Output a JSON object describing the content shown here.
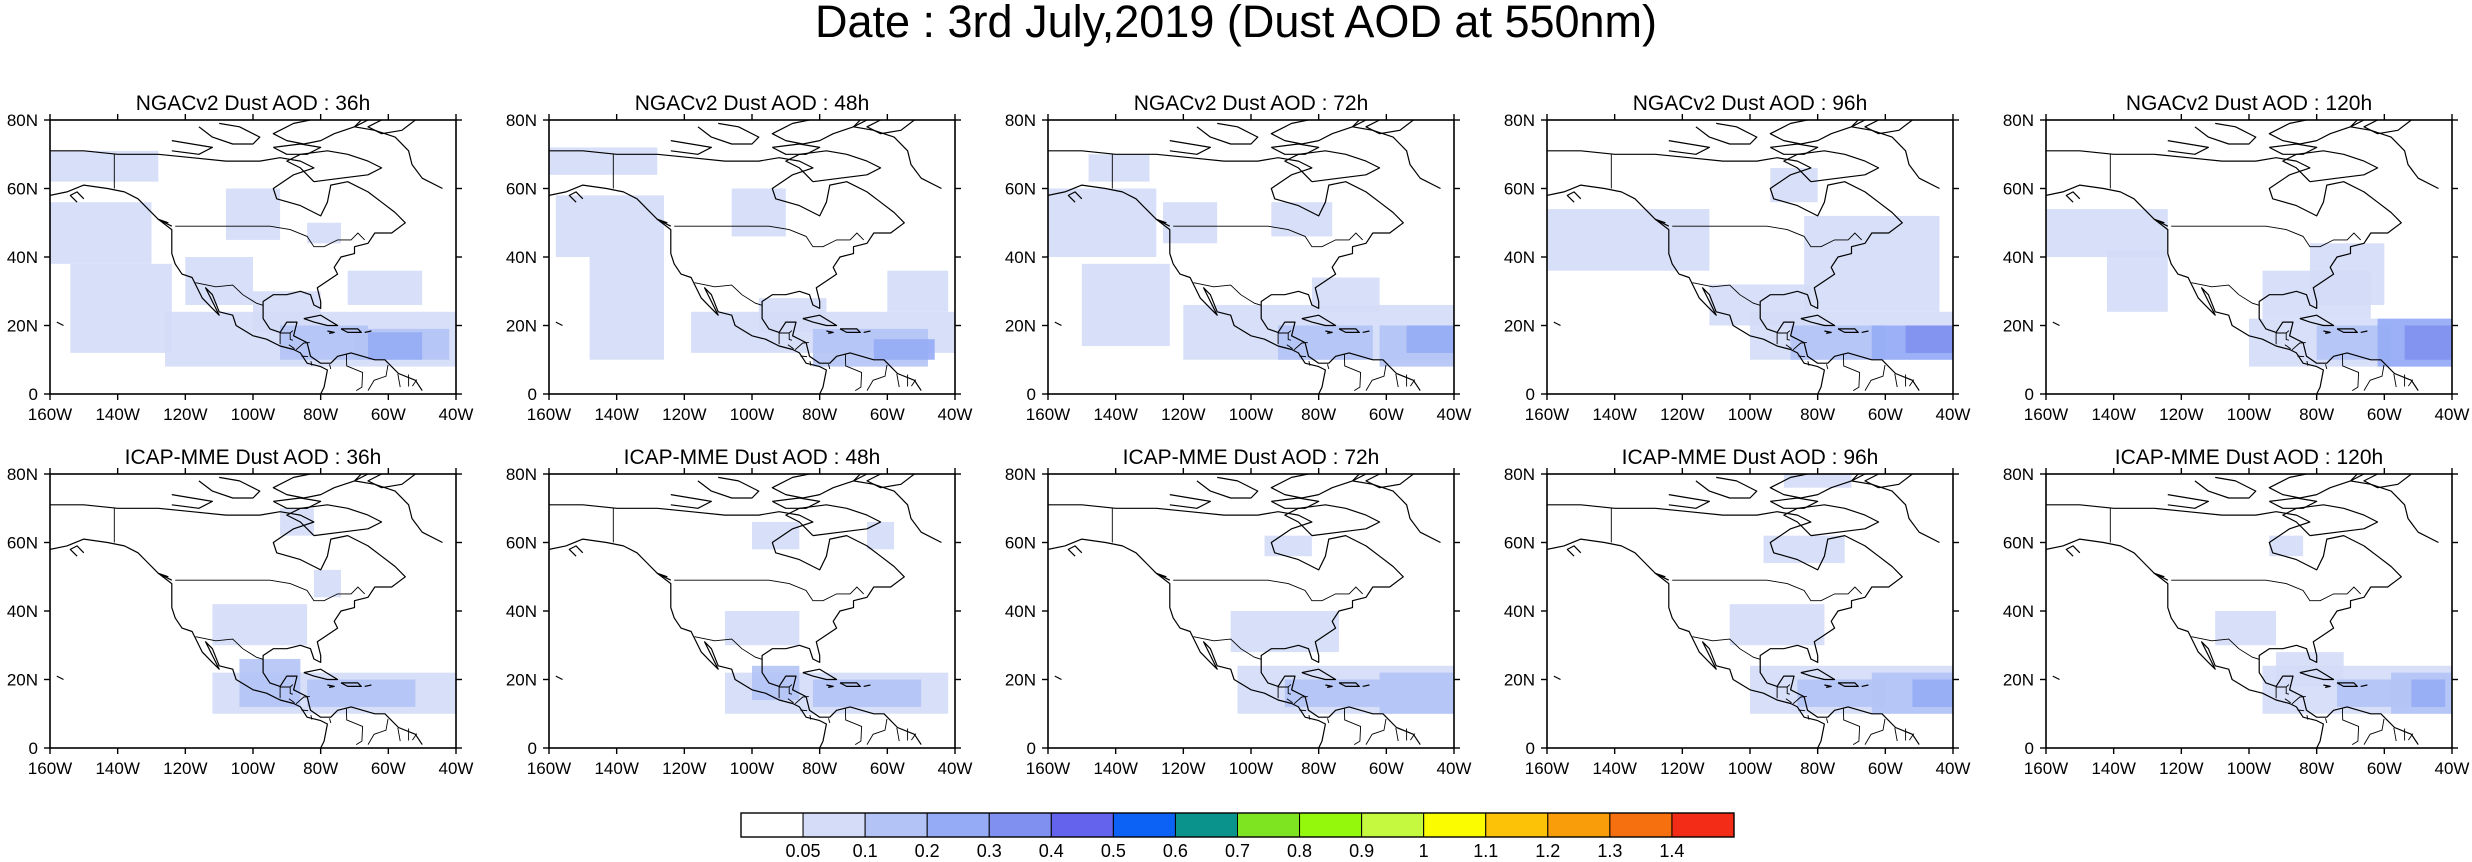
{
  "title": "Date : 3rd July,2019 (Dust AOD at 550nm)",
  "panels": [
    {
      "title": "NGACv2 Dust AOD : 36h"
    },
    {
      "title": "NGACv2 Dust AOD : 48h"
    },
    {
      "title": "NGACv2 Dust AOD : 72h"
    },
    {
      "title": "NGACv2 Dust AOD : 96h"
    },
    {
      "title": "NGACv2 Dust AOD : 120h"
    },
    {
      "title": "ICAP-MME Dust AOD : 36h"
    },
    {
      "title": "ICAP-MME Dust AOD : 48h"
    },
    {
      "title": "ICAP-MME Dust AOD : 72h"
    },
    {
      "title": "ICAP-MME Dust AOD : 96h"
    },
    {
      "title": "ICAP-MME Dust AOD : 120h"
    }
  ],
  "lon_ticks": [
    "160W",
    "140W",
    "120W",
    "100W",
    "80W",
    "60W",
    "40W"
  ],
  "lat_ticks": [
    "80N",
    "60N",
    "40N",
    "20N",
    "0"
  ],
  "extent": {
    "lon": [
      -160,
      -40
    ],
    "lat": [
      0,
      80
    ]
  },
  "colorbar": {
    "labels": [
      "0.05",
      "0.1",
      "0.2",
      "0.3",
      "0.4",
      "0.5",
      "0.6",
      "0.7",
      "0.8",
      "0.9",
      "1",
      "1.1",
      "1.2",
      "1.3",
      "1.4"
    ],
    "colors": [
      "#ffffff",
      "#d4dcf7",
      "#b3c3f5",
      "#95abf5",
      "#7f90f0",
      "#6363ee",
      "#0c62f5",
      "#09938c",
      "#7ee421",
      "#94f80c",
      "#c5f93f",
      "#fcfc00",
      "#fcc208",
      "#f99d0b",
      "#f67010",
      "#f32c17"
    ]
  },
  "shading": {
    "light": "#d4dcf7",
    "mid": "#b3c3f5",
    "strong": "#95abf5",
    "deep": "#7f90f0"
  }
}
